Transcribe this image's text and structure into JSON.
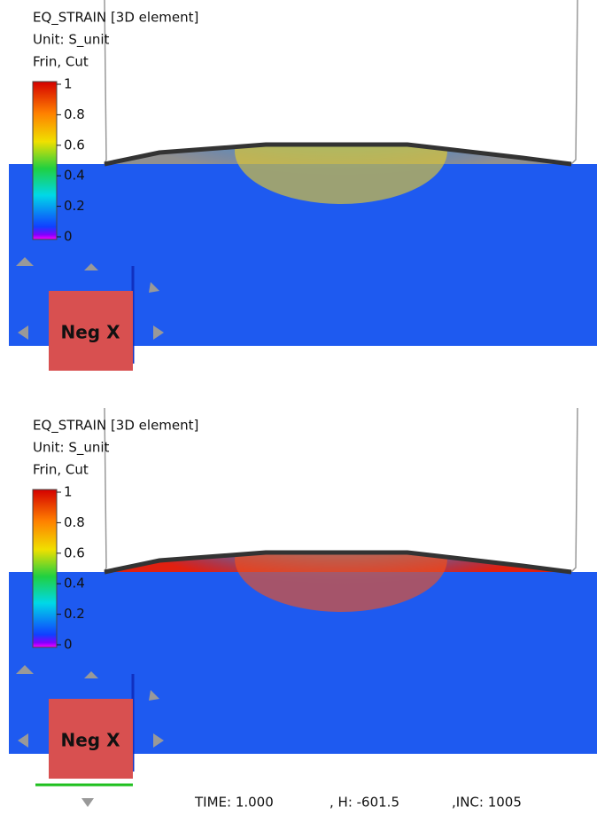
{
  "panels": [
    {
      "title": "EQ_STRAIN [3D element]",
      "unit": "Unit: S_unit",
      "mode": "Frin, Cut",
      "colorbar_ticks": [
        "1",
        "0.8",
        "0.6",
        "0.4",
        "0.2",
        "0"
      ],
      "view_cube": "Neg X"
    },
    {
      "title": "EQ_STRAIN [3D element]",
      "unit": "Unit: S_unit",
      "mode": "Frin, Cut",
      "colorbar_ticks": [
        "1",
        "0.8",
        "0.6",
        "0.4",
        "0.2",
        "0"
      ],
      "view_cube": "Neg X"
    }
  ],
  "status": {
    "time": "TIME:  1.000",
    "h": ", H: -601.5",
    "inc": ",INC:  1005"
  }
}
